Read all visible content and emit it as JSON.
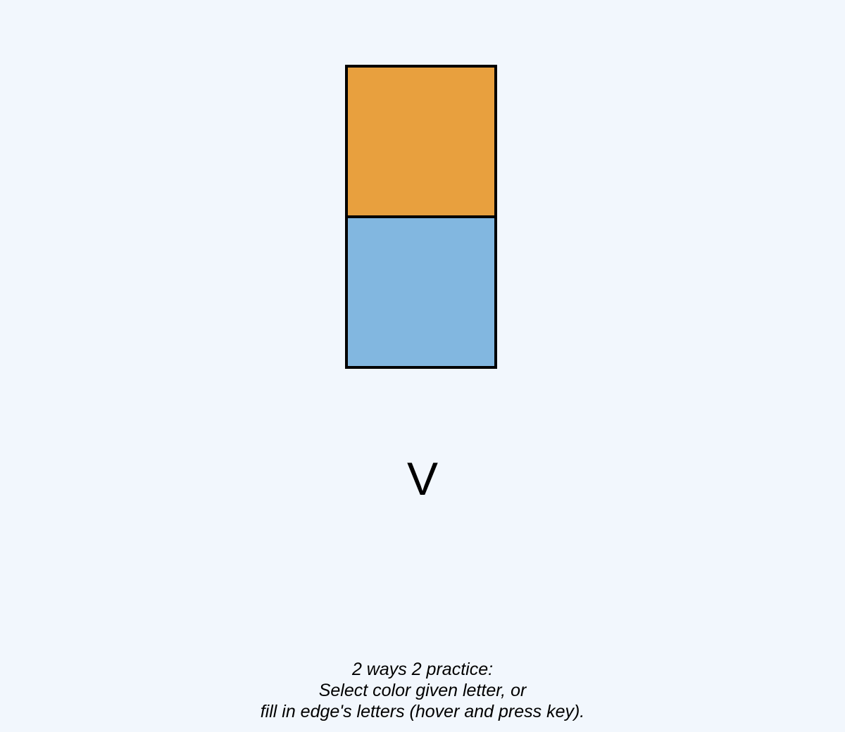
{
  "tiles": [
    {
      "name": "orange",
      "color": "#e8a03e"
    },
    {
      "name": "blue",
      "color": "#82b7e0"
    }
  ],
  "prompt": {
    "letter": "V"
  },
  "instructions": {
    "line1": "2 ways 2 practice:",
    "line2": "Select color given letter, or",
    "line3": "fill in edge's letters (hover and press key)."
  }
}
